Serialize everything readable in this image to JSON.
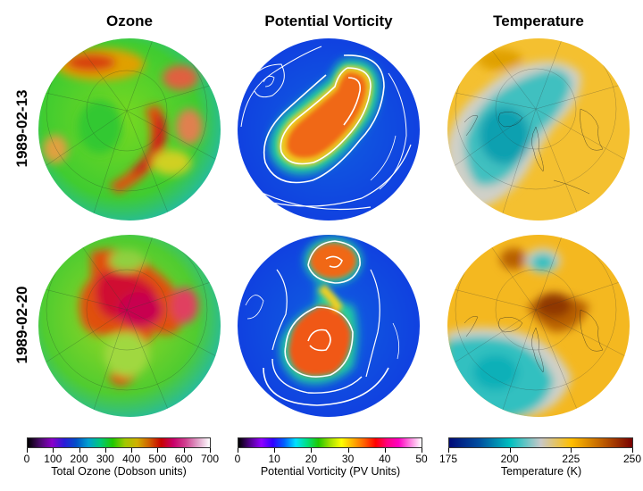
{
  "columns": [
    {
      "title": "Ozone"
    },
    {
      "title": "Potential Vorticity"
    },
    {
      "title": "Temperature"
    }
  ],
  "rows": [
    {
      "date": "1989-02-13"
    },
    {
      "date": "1989-02-20"
    }
  ],
  "colorbars": [
    {
      "label": "Total Ozone (Dobson units)",
      "ticks": [
        "0",
        "100",
        "200",
        "300",
        "400",
        "500",
        "600",
        "700"
      ],
      "range": [
        0,
        700
      ],
      "colors": [
        "#000000",
        "#4a0a6a",
        "#8a00c8",
        "#2a1ad8",
        "#0050c8",
        "#00a0d0",
        "#00c878",
        "#20c800",
        "#a0c800",
        "#d0b000",
        "#d06000",
        "#c80000",
        "#c8006a",
        "#d04090",
        "#e0a0c8",
        "#ffffff"
      ]
    },
    {
      "label": "Potential Vorticity (PV Units)",
      "ticks": [
        "0",
        "10",
        "20",
        "30",
        "40",
        "50"
      ],
      "range": [
        0,
        50
      ],
      "colors": [
        "#000000",
        "#50008a",
        "#9000ff",
        "#3000ff",
        "#0060ff",
        "#00e0ff",
        "#00e080",
        "#20c800",
        "#a0e000",
        "#ffff00",
        "#ffb000",
        "#ff6000",
        "#ff0000",
        "#ff0080",
        "#ff00c0",
        "#ff80e0",
        "#ffffff"
      ]
    },
    {
      "label": "Temperature (K)",
      "ticks": [
        "175",
        "200",
        "225",
        "250"
      ],
      "range": [
        175,
        250
      ],
      "colors": [
        "#000a78",
        "#0050a0",
        "#00c0c0",
        "#c8c8c8",
        "#ffbe00",
        "#c06000",
        "#780000"
      ]
    }
  ]
}
